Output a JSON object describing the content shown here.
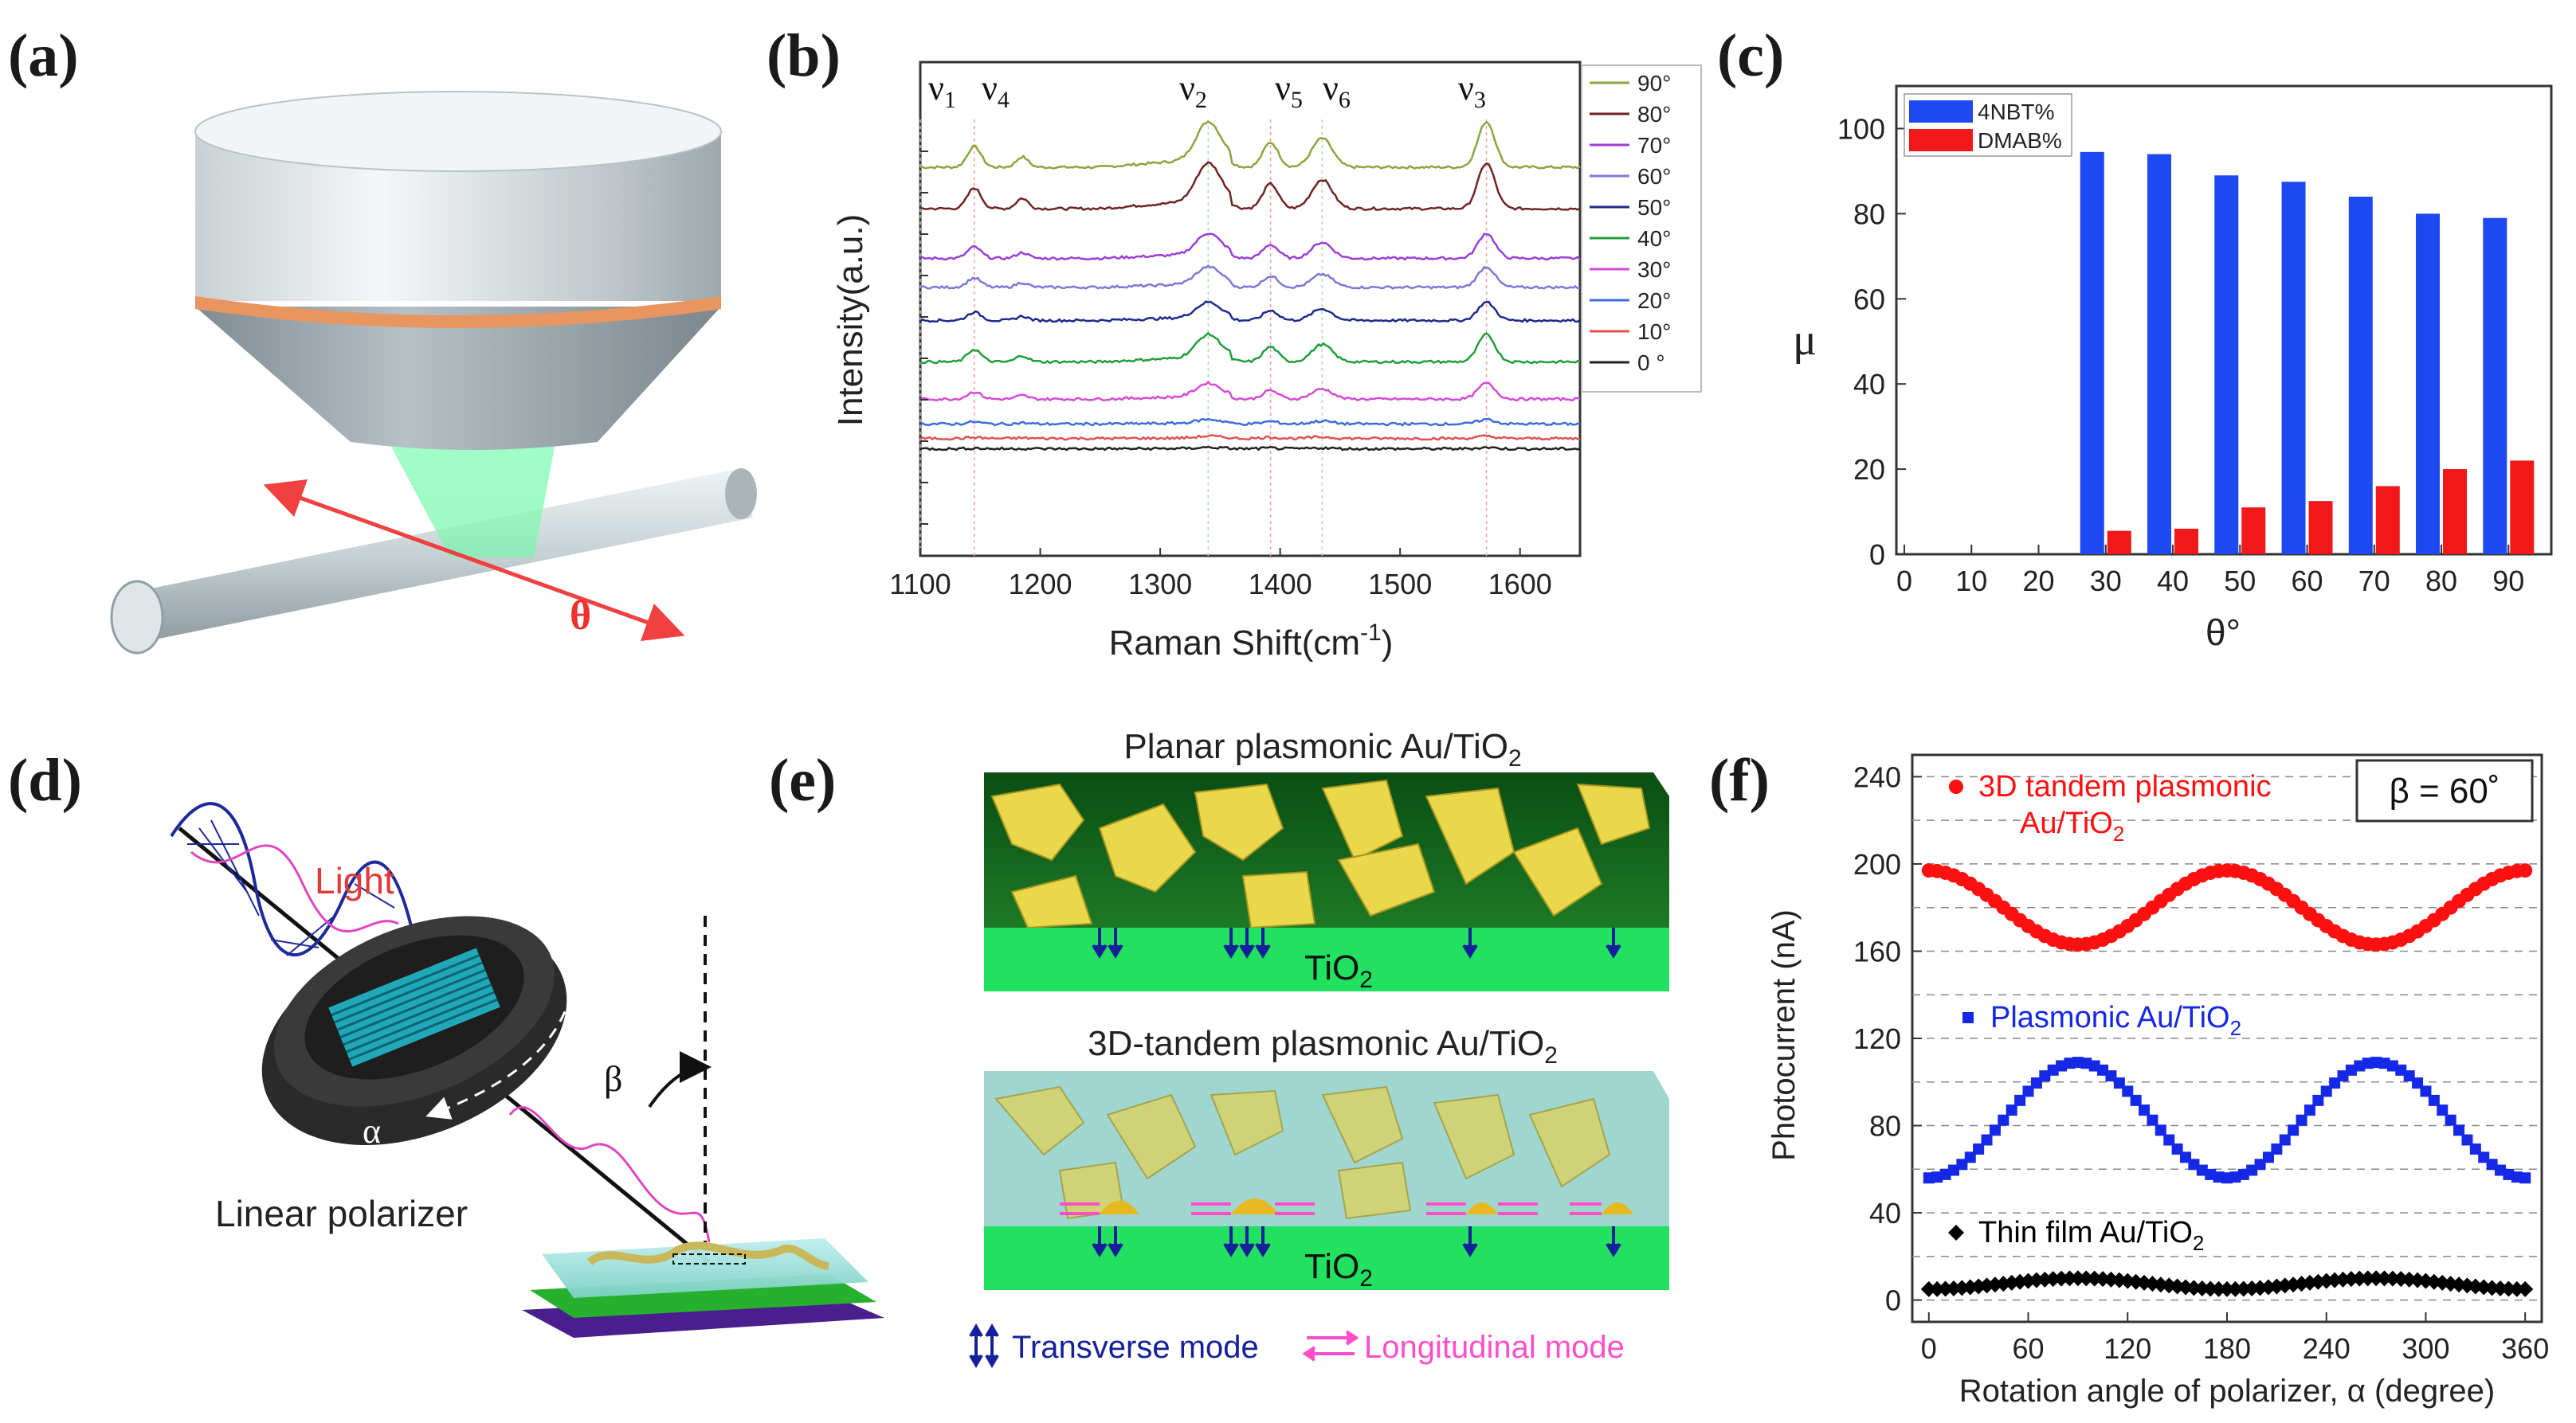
{
  "panels": {
    "a": {
      "label": "(a)",
      "theta": "θ"
    },
    "b": {
      "label": "(b)"
    },
    "c": {
      "label": "(c)"
    },
    "d": {
      "label": "(d)",
      "light": "Light",
      "polarizer": "Linear polarizer",
      "alpha": "α",
      "beta": "β"
    },
    "e": {
      "label": "(e)",
      "title_top": "Planar plasmonic Au/TiO",
      "title_top_sub": "2",
      "title_bottom": "3D-tandem plasmonic Au/TiO",
      "title_bottom_sub": "2",
      "substrate": "TiO",
      "substrate_sub": "2",
      "legend_transverse": "Transverse mode",
      "legend_longitudinal": "Longitudinal mode"
    },
    "f": {
      "label": "(f)"
    }
  },
  "chart_data": [
    {
      "id": "b",
      "type": "line",
      "title": "",
      "xlabel": "Raman Shift(cm",
      "xlabel_sup": "-1",
      "xlabel_end": ")",
      "ylabel": "Intensity(a.u.)",
      "xlim": [
        1100,
        1650
      ],
      "xticks": [
        1100,
        1200,
        1300,
        1400,
        1500,
        1600
      ],
      "peaks": [
        {
          "name": "ν",
          "sub": "1",
          "x": 1100
        },
        {
          "name": "ν",
          "sub": "4",
          "x": 1145
        },
        {
          "name": "ν",
          "sub": "2",
          "x": 1340
        },
        {
          "name": "ν",
          "sub": "5",
          "x": 1392
        },
        {
          "name": "ν",
          "sub": "6",
          "x": 1435
        },
        {
          "name": "ν",
          "sub": "3",
          "x": 1572
        }
      ],
      "series": [
        {
          "name": "90°",
          "color": "#8aa63e",
          "offset": 9.0,
          "amp": 1.0
        },
        {
          "name": "80°",
          "color": "#6e2424",
          "offset": 8.0,
          "amp": 1.0
        },
        {
          "name": "70°",
          "color": "#9b3fd6",
          "offset": 6.8,
          "amp": 0.55
        },
        {
          "name": "60°",
          "color": "#7b78d8",
          "offset": 6.1,
          "amp": 0.45
        },
        {
          "name": "50°",
          "color": "#1c2a8c",
          "offset": 5.3,
          "amp": 0.4
        },
        {
          "name": "40°",
          "color": "#1f9e3a",
          "offset": 4.3,
          "amp": 0.6
        },
        {
          "name": "30°",
          "color": "#d64ad6",
          "offset": 3.4,
          "amp": 0.35
        },
        {
          "name": "20°",
          "color": "#3b6de0",
          "offset": 2.8,
          "amp": 0.1
        },
        {
          "name": "10°",
          "color": "#e05252",
          "offset": 2.45,
          "amp": 0.05
        },
        {
          "name": "0 °",
          "color": "#222222",
          "offset": 2.2,
          "amp": 0.03
        }
      ]
    },
    {
      "id": "c",
      "type": "bar",
      "xlabel": "θ°",
      "ylabel": "μ",
      "ylim": [
        0,
        110
      ],
      "yticks": [
        0,
        20,
        40,
        60,
        80,
        100
      ],
      "xticks": [
        0,
        10,
        20,
        30,
        40,
        50,
        60,
        70,
        80,
        90
      ],
      "categories": [
        30,
        40,
        50,
        60,
        70,
        80,
        90
      ],
      "series": [
        {
          "name": "4NBT%",
          "color": "#1f49f0",
          "values": [
            94.5,
            94,
            89,
            87.5,
            84,
            80,
            79
          ]
        },
        {
          "name": "DMAB%",
          "color": "#f01818",
          "values": [
            5.5,
            6,
            11,
            12.5,
            16,
            20,
            22
          ]
        }
      ]
    },
    {
      "id": "f",
      "type": "scatter",
      "xlabel": "Rotation angle of polarizer, α (degree)",
      "ylabel": "Photocurrent (nA)",
      "xlim": [
        -10,
        370
      ],
      "ylim": [
        -10,
        250
      ],
      "xticks": [
        0,
        60,
        120,
        180,
        240,
        300,
        360
      ],
      "yticks": [
        0,
        40,
        80,
        120,
        160,
        200,
        240
      ],
      "annotation": "β = 60˚",
      "series": [
        {
          "name": "3D tandem plasmonic",
          "name2": "Au/TiO",
          "sub": "2",
          "color": "#ff1010",
          "marker": "circle",
          "mean": 180,
          "amp": 17,
          "phase": 0
        },
        {
          "name": "Plasmonic Au/TiO",
          "name2": "",
          "sub": "2",
          "color": "#1528e6",
          "marker": "square",
          "mean": 82.5,
          "amp": 26.5,
          "phase": 180
        },
        {
          "name": "Thin film Au/TiO",
          "name2": "",
          "sub": "2",
          "color": "#000000",
          "marker": "diamond",
          "mean": 7.5,
          "amp": 2.5,
          "phase": 180
        }
      ]
    }
  ]
}
